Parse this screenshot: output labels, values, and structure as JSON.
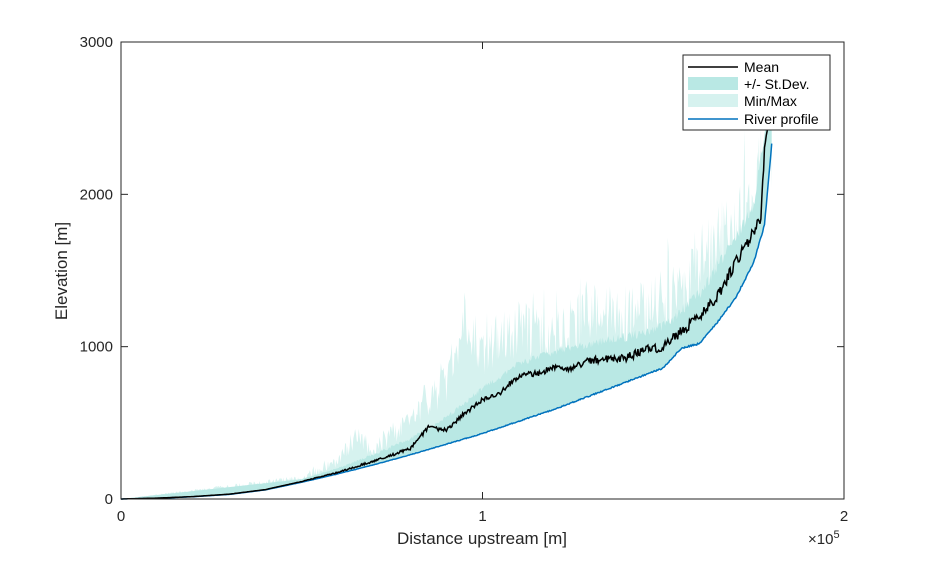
{
  "chart_data": {
    "type": "line",
    "title": "",
    "xlabel": "Distance upstream [m]",
    "ylabel": "Elevation [m]",
    "x_multiplier_label": "×10",
    "x_multiplier_exp": "5",
    "xlim": [
      0,
      200000
    ],
    "ylim": [
      0,
      3000
    ],
    "xticks": [
      0,
      1,
      2
    ],
    "xtick_labels": [
      "0",
      "1",
      "2"
    ],
    "yticks": [
      0,
      1000,
      2000,
      3000
    ],
    "ytick_labels": [
      "0",
      "1000",
      "2000",
      "3000"
    ],
    "grid": false,
    "legend_position": "northeast",
    "legend": [
      "Mean",
      "+/- St.Dev.",
      "Min/Max",
      "River profile"
    ],
    "colors": {
      "mean": "#000000",
      "stdev": "#b9e8e4",
      "minmax": "#d6f2ef",
      "river": "#0072bd"
    },
    "series": [
      {
        "name": "River profile",
        "x": [
          0,
          10000,
          20000,
          30000,
          40000,
          50000,
          60000,
          70000,
          80000,
          90000,
          100000,
          110000,
          120000,
          130000,
          140000,
          150000,
          155000,
          160000,
          165000,
          170000,
          175000,
          178000,
          180000
        ],
        "values": [
          0,
          5,
          15,
          30,
          60,
          110,
          165,
          225,
          290,
          360,
          430,
          510,
          590,
          680,
          770,
          860,
          990,
          1020,
          1160,
          1320,
          1550,
          1800,
          2330
        ]
      },
      {
        "name": "Mean",
        "x": [
          0,
          10000,
          20000,
          30000,
          40000,
          50000,
          60000,
          70000,
          80000,
          85000,
          90000,
          95000,
          100000,
          105000,
          110000,
          115000,
          120000,
          125000,
          130000,
          140000,
          145000,
          150000,
          155000,
          160000,
          165000,
          170000,
          175000,
          177000,
          178000,
          180000
        ],
        "values": [
          0,
          6,
          16,
          32,
          62,
          115,
          175,
          250,
          330,
          470,
          450,
          560,
          650,
          700,
          810,
          820,
          870,
          860,
          910,
          930,
          980,
          1000,
          1100,
          1200,
          1330,
          1550,
          1750,
          1850,
          2300,
          2550
        ]
      },
      {
        "name": "+/- St.Dev. (upper)",
        "x": [
          0,
          50000,
          60000,
          70000,
          80000,
          90000,
          100000,
          110000,
          120000,
          130000,
          140000,
          150000,
          160000,
          170000,
          175000,
          178000,
          180000
        ],
        "values": [
          0,
          130,
          200,
          290,
          390,
          530,
          720,
          880,
          960,
          1010,
          1050,
          1120,
          1330,
          1700,
          1900,
          2400,
          2600
        ]
      },
      {
        "name": "Min/Max (upper)",
        "x": [
          0,
          50000,
          60000,
          65000,
          70000,
          80000,
          90000,
          95000,
          100000,
          105000,
          110000,
          120000,
          130000,
          140000,
          150000,
          160000,
          170000,
          175000,
          178000,
          180000
        ],
        "values": [
          0,
          160,
          300,
          480,
          380,
          600,
          900,
          1400,
          1100,
          1250,
          1300,
          1280,
          1420,
          1380,
          1550,
          1800,
          2100,
          2300,
          2600,
          2700
        ]
      }
    ]
  }
}
